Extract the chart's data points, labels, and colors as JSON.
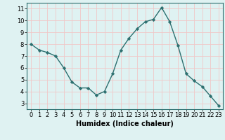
{
  "x": [
    0,
    1,
    2,
    3,
    4,
    5,
    6,
    7,
    8,
    9,
    10,
    11,
    12,
    13,
    14,
    15,
    16,
    17,
    18,
    19,
    20,
    21,
    22,
    23
  ],
  "y": [
    8.0,
    7.5,
    7.3,
    7.0,
    6.0,
    4.8,
    4.3,
    4.3,
    3.7,
    4.0,
    5.5,
    7.5,
    8.5,
    9.3,
    9.9,
    10.1,
    11.1,
    9.9,
    7.9,
    5.5,
    4.9,
    4.4,
    3.6,
    2.8
  ],
  "line_color": "#2d7070",
  "marker": "D",
  "marker_size": 2.2,
  "bg_color": "#dff2f2",
  "grid_color": "#f0c8c8",
  "xlabel": "Humidex (Indice chaleur)",
  "xlabel_fontsize": 7,
  "xlabel_weight": "bold",
  "xlim": [
    -0.5,
    23.5
  ],
  "ylim": [
    2.5,
    11.5
  ],
  "yticks": [
    3,
    4,
    5,
    6,
    7,
    8,
    9,
    10,
    11
  ],
  "xticks": [
    0,
    1,
    2,
    3,
    4,
    5,
    6,
    7,
    8,
    9,
    10,
    11,
    12,
    13,
    14,
    15,
    16,
    17,
    18,
    19,
    20,
    21,
    22,
    23
  ],
  "tick_fontsize": 6.0,
  "spine_color": "#2d7070"
}
